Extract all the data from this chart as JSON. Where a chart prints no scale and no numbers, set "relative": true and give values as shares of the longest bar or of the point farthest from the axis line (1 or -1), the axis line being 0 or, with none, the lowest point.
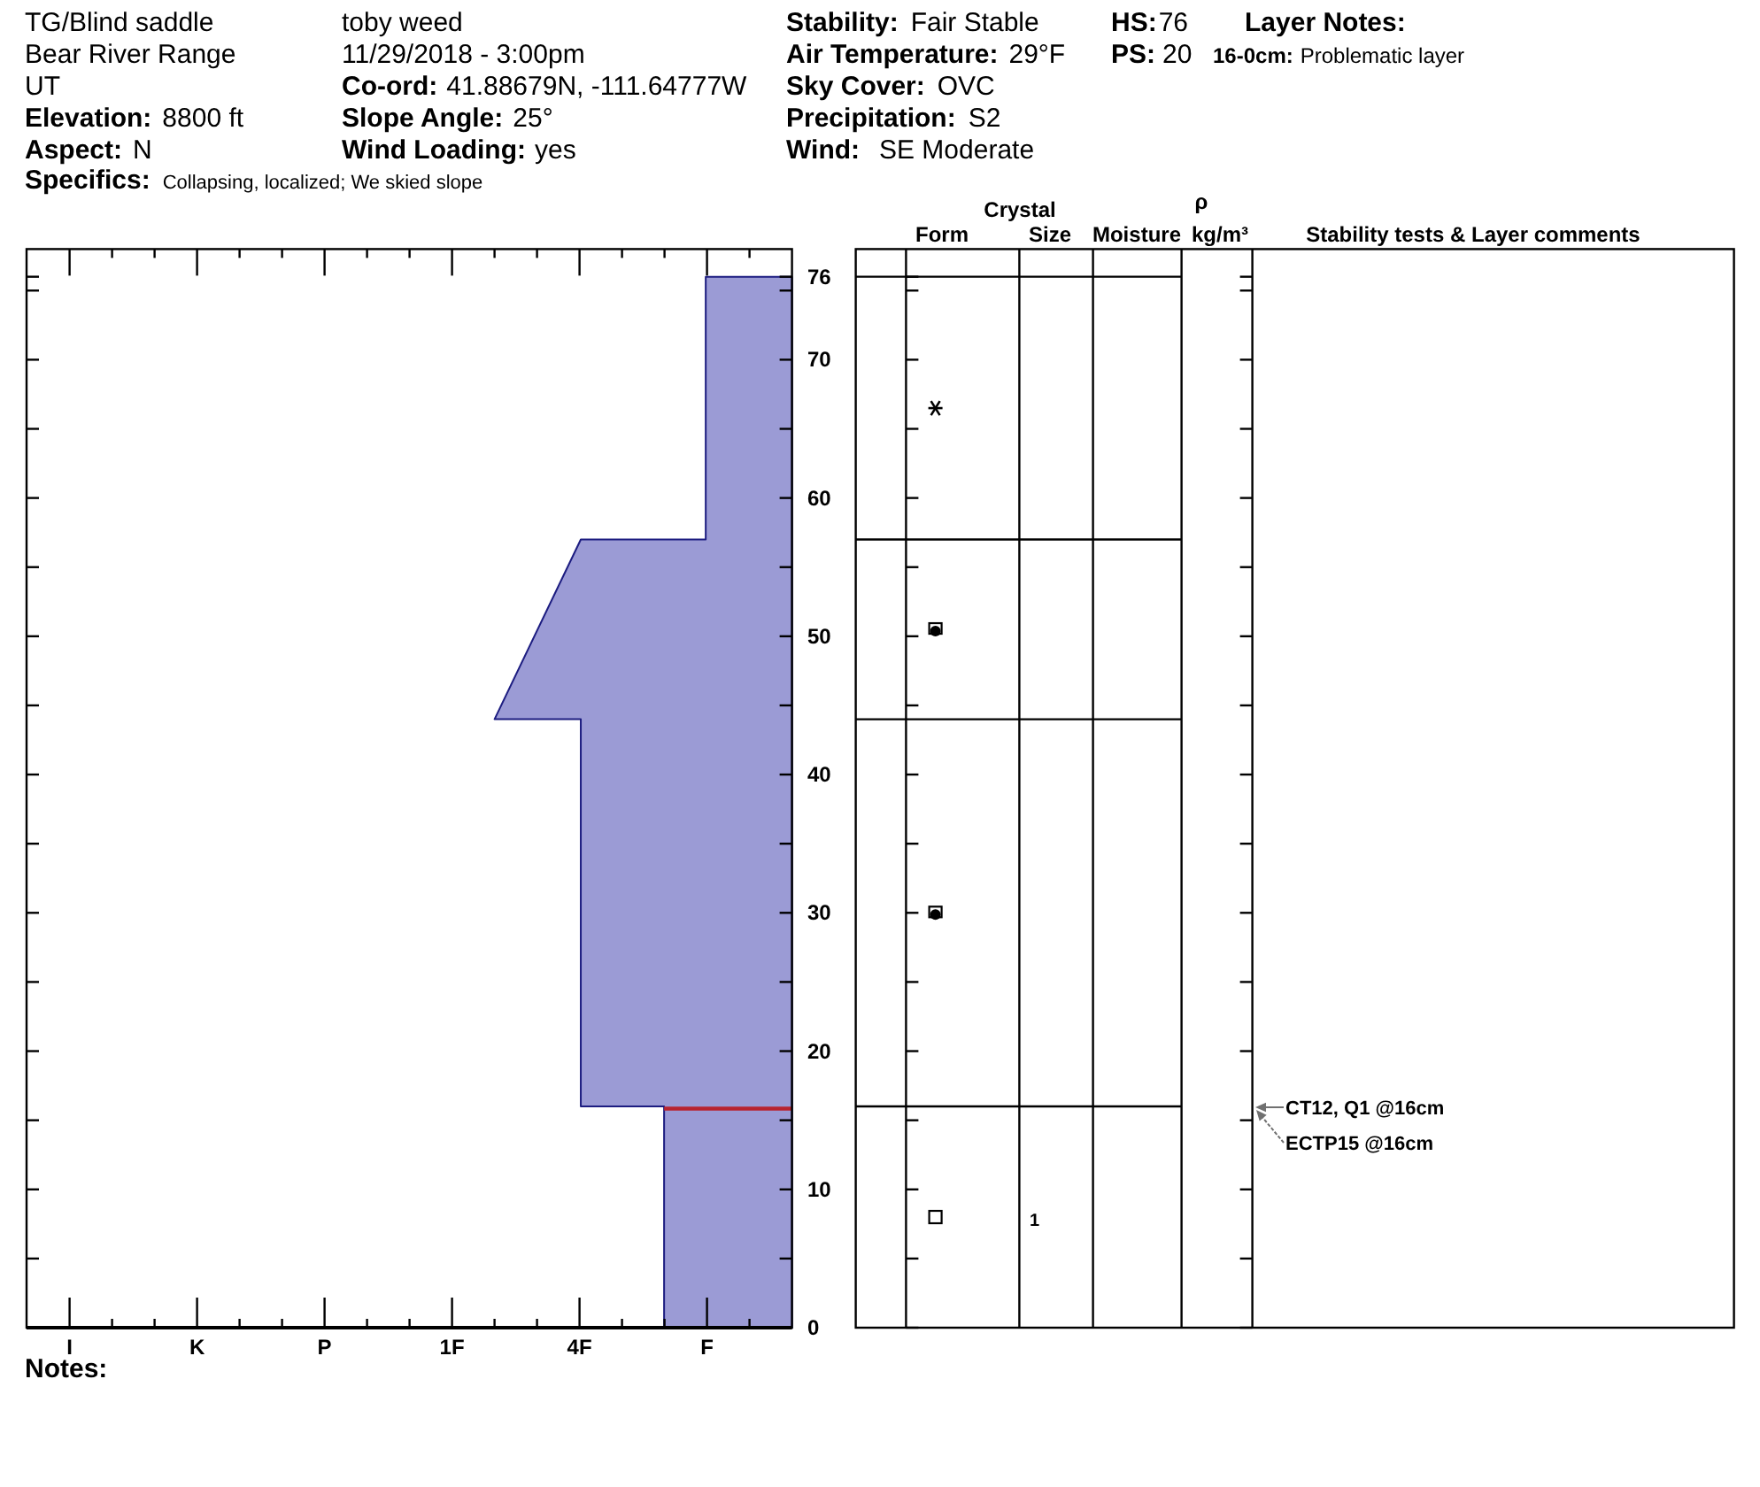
{
  "chart_data": {
    "type": "area",
    "orientation": "horizontal",
    "relative": true,
    "x": [
      0,
      16,
      16,
      44,
      44,
      57,
      57,
      76
    ],
    "values": [
      -0.43,
      -0.43,
      -0.71,
      -0.71,
      -1,
      -0.71,
      -0.29,
      -0.29
    ],
    "color": "#9b9bd5",
    "ylim": [
      0,
      78
    ],
    "yticks": [
      0,
      10,
      20,
      30,
      40,
      50,
      60,
      70,
      76
    ],
    "ref_lines": [
      {
        "axis": "y",
        "value": 16,
        "color": "#b8232f"
      }
    ],
    "annotations": [
      "TG/Blind saddle",
      "Bear River Range",
      "UT",
      "Elevation:",
      "8800 ft",
      "Aspect:",
      "N",
      "Specifics:",
      "Collapsing, localized; We skied slope",
      "toby weed",
      "11/29/2018 - 3:00pm",
      "Co-ord:",
      "41.88679N, -111.64777W",
      "Slope Angle:",
      "25°",
      "Wind Loading:",
      "yes",
      "Stability:",
      "Fair Stable",
      "Air Temperature:",
      "29°F",
      "Sky Cover:",
      "OVC",
      "Precipitation:",
      "S2",
      "Wind:",
      "SE Moderate",
      "HS:",
      "76",
      "PS:",
      "20",
      "Layer Notes:",
      "16-0cm:",
      "Problematic layer",
      "Crystal",
      "Form",
      "Size",
      "Moisture",
      "ρ",
      "kg/m³",
      "Stability tests & Layer comments",
      "1",
      "CT12, Q1 @16cm",
      "ECTP15 @16cm",
      "I",
      "K",
      "P",
      "1F",
      "4F",
      "F",
      "Notes:"
    ]
  }
}
